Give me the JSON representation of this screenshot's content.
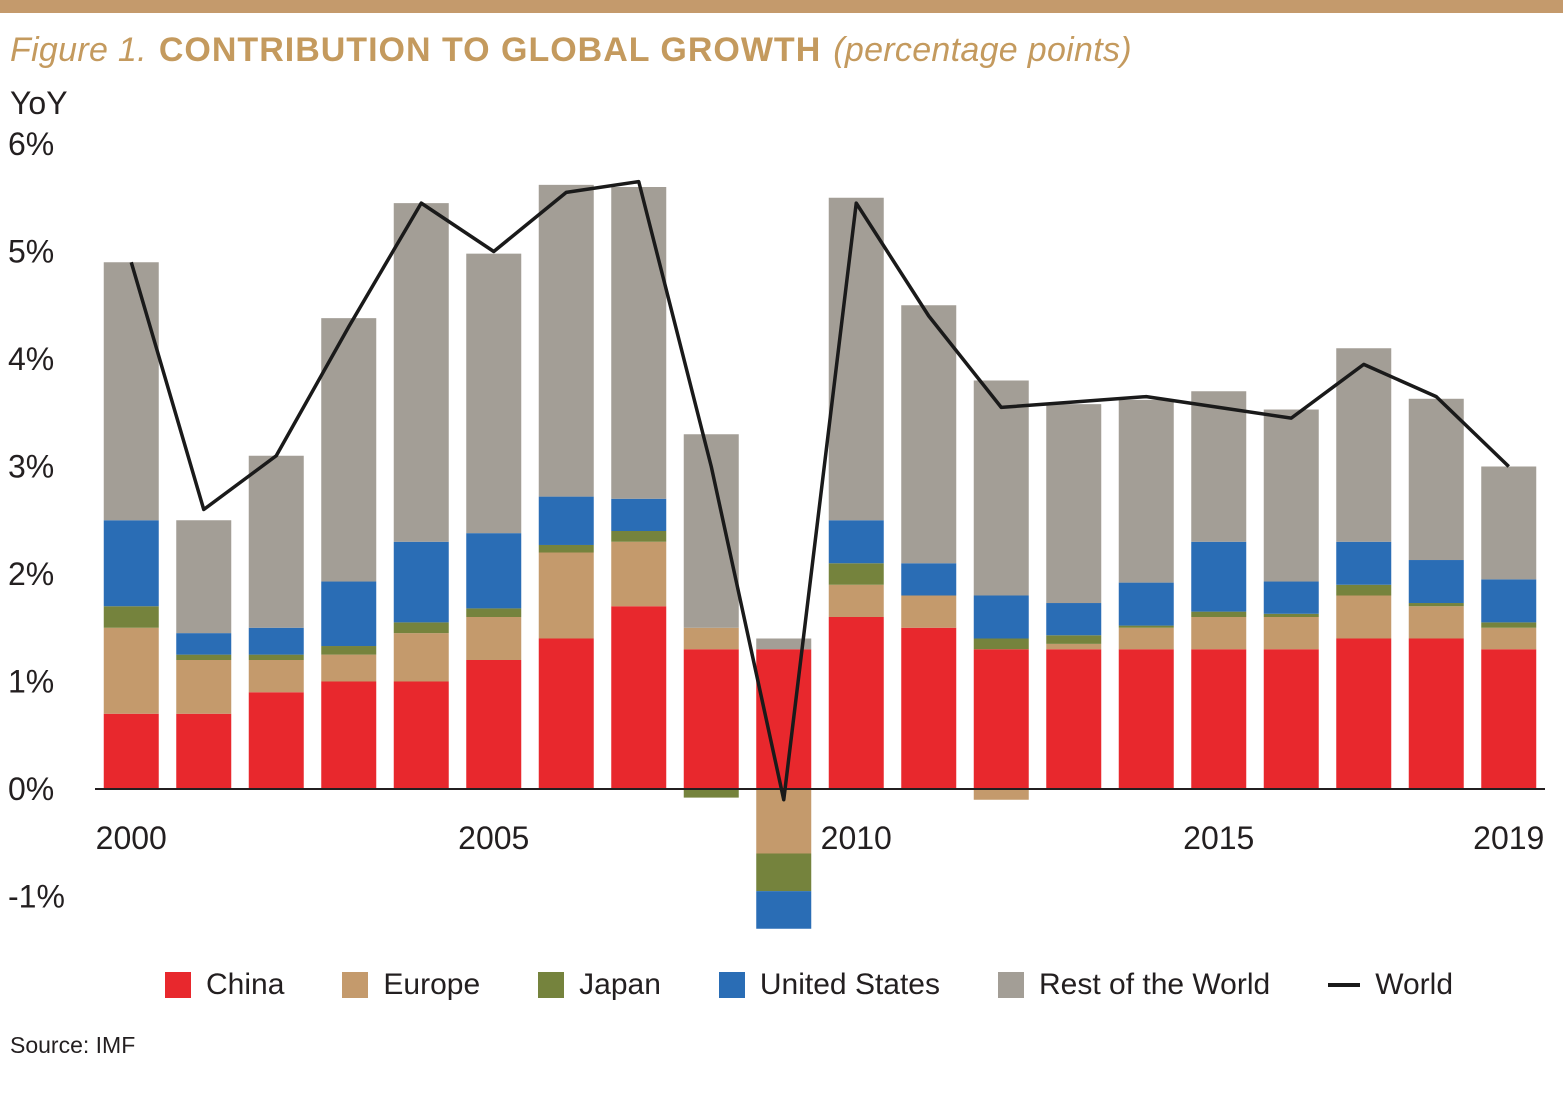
{
  "header": {
    "figure_label": "Figure 1.",
    "title": "CONTRIBUTION TO GLOBAL GROWTH",
    "subtitle": "(percentage points)"
  },
  "theme": {
    "accent_gold": "#c49a6c",
    "title_gold": "#c49a5e",
    "axis_color": "#231f20"
  },
  "chart_data": {
    "type": "bar",
    "stacked": true,
    "grid": false,
    "legend_position": "bottom",
    "y_axis_label": "YoY",
    "ylim": [
      -1.4,
      6.2
    ],
    "y_ticks": [
      {
        "value": 6,
        "label": "6%"
      },
      {
        "value": 5,
        "label": "5%"
      },
      {
        "value": 4,
        "label": "4%"
      },
      {
        "value": 3,
        "label": "3%"
      },
      {
        "value": 2,
        "label": "2%"
      },
      {
        "value": 1,
        "label": "1%"
      },
      {
        "value": 0,
        "label": "0%"
      },
      {
        "value": -1,
        "label": "-1%"
      }
    ],
    "x_ticks": [
      {
        "index": 0,
        "label": "2000"
      },
      {
        "index": 5,
        "label": "2005"
      },
      {
        "index": 10,
        "label": "2010"
      },
      {
        "index": 15,
        "label": "2015"
      },
      {
        "index": 19,
        "label": "2019"
      }
    ],
    "categories": [
      2000,
      2001,
      2002,
      2003,
      2004,
      2005,
      2006,
      2007,
      2008,
      2009,
      2010,
      2011,
      2012,
      2013,
      2014,
      2015,
      2016,
      2017,
      2018,
      2019
    ],
    "series": [
      {
        "name": "China",
        "color": "#e8282d",
        "values": [
          0.7,
          0.7,
          0.9,
          1.0,
          1.0,
          1.2,
          1.4,
          1.7,
          1.3,
          1.3,
          1.6,
          1.5,
          1.3,
          1.3,
          1.3,
          1.3,
          1.3,
          1.4,
          1.4,
          1.3
        ]
      },
      {
        "name": "Europe",
        "color": "#c49a6c",
        "values": [
          0.8,
          0.5,
          0.3,
          0.25,
          0.45,
          0.4,
          0.8,
          0.6,
          0.2,
          -0.6,
          0.3,
          0.3,
          -0.1,
          0.05,
          0.2,
          0.3,
          0.3,
          0.4,
          0.3,
          0.2
        ]
      },
      {
        "name": "Japan",
        "color": "#75833d",
        "values": [
          0.2,
          0.05,
          0.05,
          0.08,
          0.1,
          0.08,
          0.07,
          0.1,
          -0.08,
          -0.35,
          0.2,
          0.0,
          0.1,
          0.08,
          0.02,
          0.05,
          0.03,
          0.1,
          0.03,
          0.05
        ]
      },
      {
        "name": "United States",
        "color": "#2a6db5",
        "values": [
          0.8,
          0.2,
          0.25,
          0.6,
          0.75,
          0.7,
          0.45,
          0.3,
          0.0,
          -0.35,
          0.4,
          0.3,
          0.4,
          0.3,
          0.4,
          0.65,
          0.3,
          0.4,
          0.4,
          0.4
        ]
      },
      {
        "name": "Rest of the World",
        "color": "#a39e96",
        "values": [
          2.4,
          1.05,
          1.6,
          2.45,
          3.15,
          2.6,
          2.9,
          2.9,
          1.8,
          0.1,
          3.0,
          2.4,
          2.0,
          1.85,
          1.7,
          1.4,
          1.6,
          1.8,
          1.5,
          1.05
        ]
      }
    ],
    "line_series": {
      "name": "World",
      "color": "#1a1a1a",
      "values": [
        4.9,
        2.6,
        3.1,
        4.3,
        5.45,
        5.0,
        5.55,
        5.65,
        3.0,
        -0.1,
        5.45,
        4.4,
        3.55,
        3.6,
        3.65,
        3.55,
        3.45,
        3.95,
        3.65,
        3.0
      ]
    }
  },
  "footer": {
    "source": "Source: IMF"
  }
}
